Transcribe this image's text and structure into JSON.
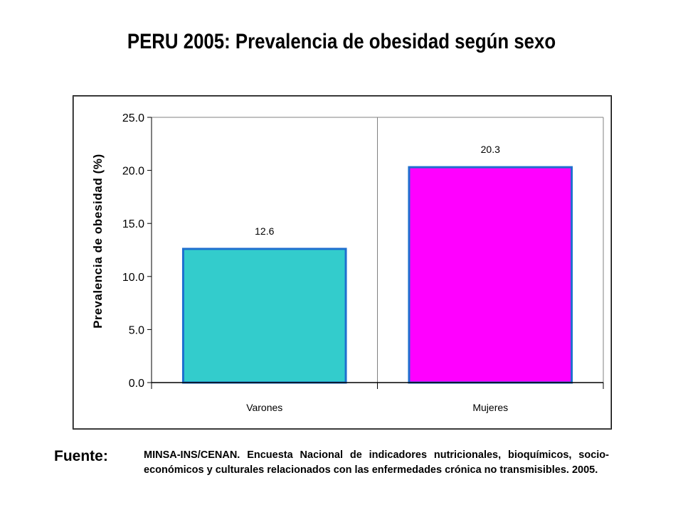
{
  "chart_data": {
    "type": "bar",
    "title": "PERU 2005: Prevalencia de obesidad según sexo",
    "ylabel": "Prevalencia de obesidad (%)",
    "xlabel": "",
    "categories": [
      "Varones",
      "Mujeres"
    ],
    "values": [
      12.6,
      20.3
    ],
    "value_labels": [
      "12.6",
      "20.3"
    ],
    "ylim": [
      0,
      25
    ],
    "yticks": [
      "0.0",
      "5.0",
      "10.0",
      "15.0",
      "20.0",
      "25.0"
    ],
    "bar_colors": [
      "#33CCCC",
      "#FF00FF"
    ],
    "bar_edge_color": "#1F6FCF",
    "grid": true,
    "legend": "none"
  },
  "source": {
    "label": "Fuente:",
    "text": "MINSA-INS/CENAN. Encuesta Nacional de indicadores nutricionales, bioquímicos, socio-económicos y culturales relacionados con las enfermedades crónica no transmisibles. 2005."
  }
}
